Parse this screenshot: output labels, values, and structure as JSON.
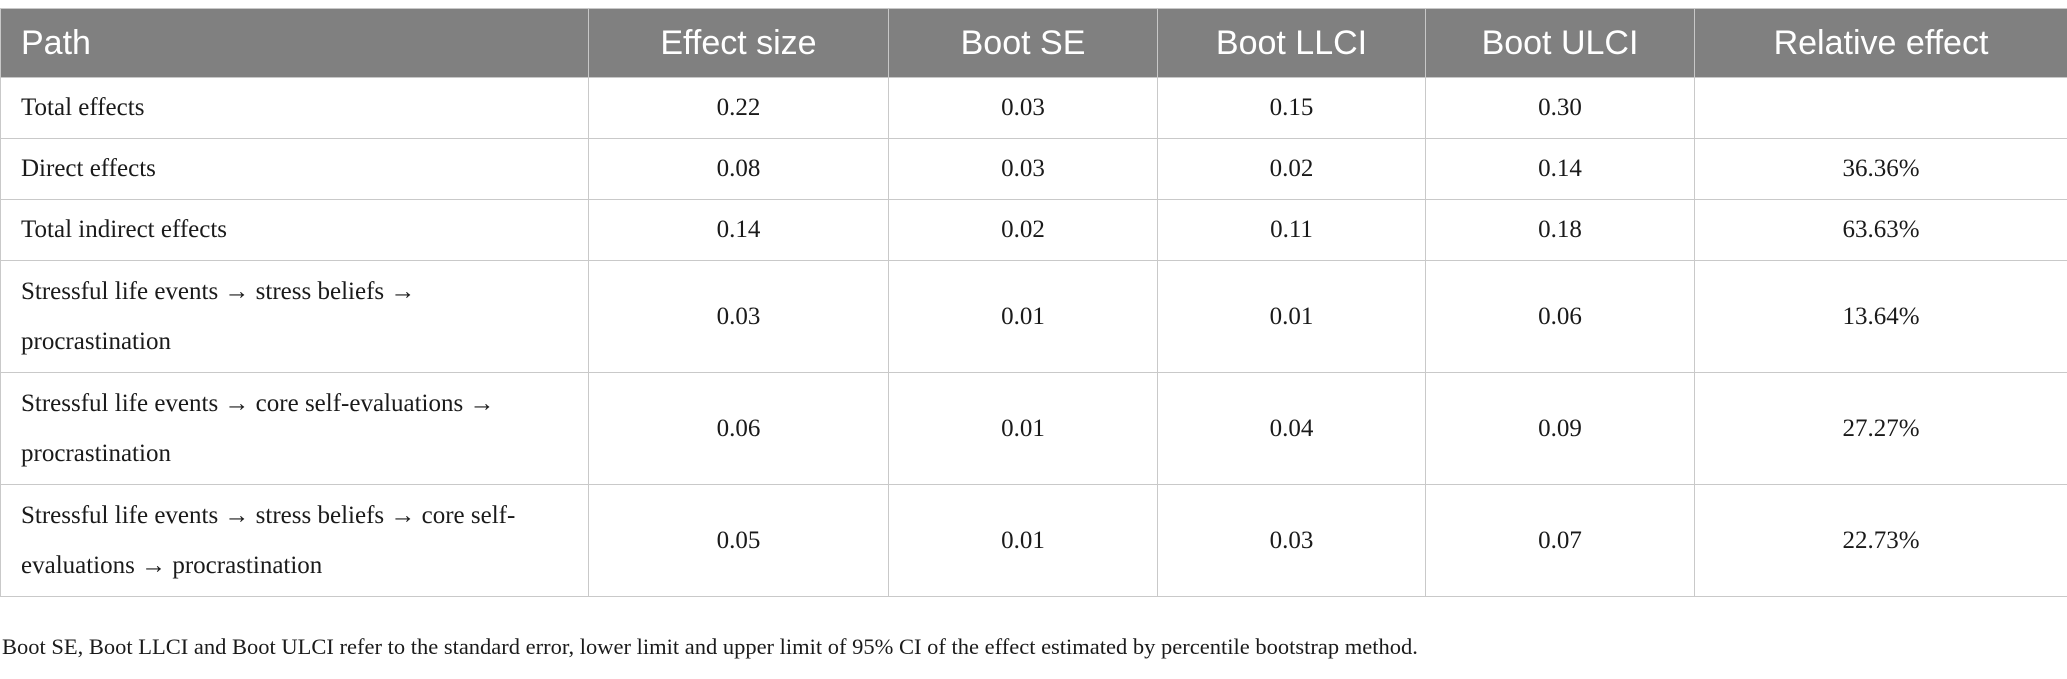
{
  "table": {
    "headers": [
      "Path",
      "Effect size",
      "Boot SE",
      "Boot LLCI",
      "Boot ULCI",
      "Relative effect"
    ],
    "rows": [
      {
        "path": "Total effects",
        "effect": "0.22",
        "se": "0.03",
        "llci": "0.15",
        "ulci": "0.30",
        "relative": ""
      },
      {
        "path": "Direct effects",
        "effect": "0.08",
        "se": "0.03",
        "llci": "0.02",
        "ulci": "0.14",
        "relative": "36.36%"
      },
      {
        "path": "Total indirect effects",
        "effect": "0.14",
        "se": "0.02",
        "llci": "0.11",
        "ulci": "0.18",
        "relative": "63.63%"
      },
      {
        "path": "Stressful life events → stress beliefs → procrastination",
        "effect": "0.03",
        "se": "0.01",
        "llci": "0.01",
        "ulci": "0.06",
        "relative": "13.64%"
      },
      {
        "path": "Stressful life events → core self-evaluations → procrastination",
        "effect": "0.06",
        "se": "0.01",
        "llci": "0.04",
        "ulci": "0.09",
        "relative": "27.27%"
      },
      {
        "path": "Stressful life events → stress beliefs → core self-evaluations → procrastination",
        "effect": "0.05",
        "se": "0.01",
        "llci": "0.03",
        "ulci": "0.07",
        "relative": "22.73%"
      }
    ]
  },
  "note": "Boot SE, Boot LLCI and Boot ULCI refer to the standard error, lower limit and upper limit of 95% CI of the effect estimated by percentile bootstrap method.",
  "colors": {
    "header_bg": "#808080",
    "header_text": "#ffffff",
    "border": "#c9c9c9"
  }
}
